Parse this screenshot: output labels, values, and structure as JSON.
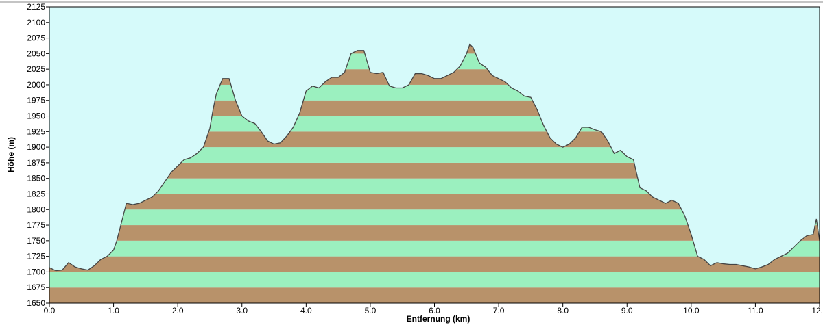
{
  "chart_data": {
    "type": "area",
    "xlabel": "Entfernung   (km)",
    "ylabel": "Höhe (m)",
    "x": [
      0.0,
      0.1,
      0.2,
      0.3,
      0.4,
      0.5,
      0.6,
      0.7,
      0.8,
      0.9,
      1.0,
      1.05,
      1.1,
      1.15,
      1.2,
      1.3,
      1.4,
      1.5,
      1.6,
      1.7,
      1.8,
      1.9,
      2.0,
      2.1,
      2.2,
      2.3,
      2.4,
      2.5,
      2.55,
      2.6,
      2.7,
      2.8,
      2.9,
      3.0,
      3.1,
      3.2,
      3.3,
      3.4,
      3.5,
      3.6,
      3.7,
      3.8,
      3.9,
      4.0,
      4.1,
      4.2,
      4.3,
      4.4,
      4.5,
      4.6,
      4.7,
      4.8,
      4.9,
      5.0,
      5.1,
      5.2,
      5.3,
      5.4,
      5.5,
      5.6,
      5.7,
      5.8,
      5.9,
      6.0,
      6.1,
      6.2,
      6.3,
      6.4,
      6.5,
      6.55,
      6.6,
      6.7,
      6.8,
      6.9,
      7.0,
      7.1,
      7.2,
      7.3,
      7.4,
      7.5,
      7.6,
      7.7,
      7.8,
      7.9,
      8.0,
      8.1,
      8.2,
      8.3,
      8.4,
      8.5,
      8.6,
      8.7,
      8.8,
      8.9,
      9.0,
      9.1,
      9.2,
      9.3,
      9.4,
      9.5,
      9.6,
      9.7,
      9.8,
      9.9,
      10.0,
      10.1,
      10.2,
      10.3,
      10.4,
      10.5,
      10.6,
      10.7,
      10.8,
      10.9,
      11.0,
      11.1,
      11.2,
      11.3,
      11.4,
      11.5,
      11.6,
      11.7,
      11.8,
      11.9,
      11.95,
      12.0
    ],
    "values": [
      1707,
      1702,
      1703,
      1715,
      1708,
      1705,
      1703,
      1710,
      1720,
      1725,
      1735,
      1750,
      1770,
      1790,
      1810,
      1808,
      1810,
      1815,
      1820,
      1830,
      1845,
      1860,
      1870,
      1880,
      1883,
      1890,
      1900,
      1930,
      1960,
      1985,
      2010,
      2010,
      1975,
      1950,
      1942,
      1938,
      1925,
      1910,
      1905,
      1907,
      1918,
      1932,
      1955,
      1990,
      1998,
      1995,
      2005,
      2012,
      2012,
      2020,
      2050,
      2055,
      2055,
      2020,
      2018,
      2020,
      1998,
      1995,
      1995,
      2000,
      2018,
      2018,
      2015,
      2010,
      2010,
      2015,
      2020,
      2030,
      2050,
      2065,
      2060,
      2035,
      2028,
      2015,
      2010,
      2005,
      1995,
      1990,
      1982,
      1980,
      1960,
      1935,
      1915,
      1905,
      1900,
      1905,
      1915,
      1932,
      1932,
      1928,
      1925,
      1910,
      1890,
      1895,
      1885,
      1880,
      1835,
      1830,
      1820,
      1815,
      1810,
      1815,
      1810,
      1790,
      1760,
      1725,
      1720,
      1710,
      1715,
      1713,
      1712,
      1712,
      1710,
      1708,
      1705,
      1708,
      1712,
      1720,
      1725,
      1730,
      1740,
      1750,
      1758,
      1760,
      1785,
      1750
    ],
    "xlim": [
      0,
      12
    ],
    "ylim": [
      1650,
      2125
    ],
    "xticks": [
      {
        "value": 0,
        "label": "0.0"
      },
      {
        "value": 1,
        "label": "1.0"
      },
      {
        "value": 2,
        "label": "2.0"
      },
      {
        "value": 3,
        "label": "3.0"
      },
      {
        "value": 4,
        "label": "4.0"
      },
      {
        "value": 5,
        "label": "5.0"
      },
      {
        "value": 6,
        "label": "6.0"
      },
      {
        "value": 7,
        "label": "7.0"
      },
      {
        "value": 8,
        "label": "8.0"
      },
      {
        "value": 9,
        "label": "9.0"
      },
      {
        "value": 10,
        "label": "10.0"
      },
      {
        "value": 11,
        "label": "11.0"
      },
      {
        "value": 12,
        "label": "12.0"
      }
    ],
    "yticks": [
      1650,
      1675,
      1700,
      1725,
      1750,
      1775,
      1800,
      1825,
      1850,
      1875,
      1900,
      1925,
      1950,
      1975,
      2000,
      2025,
      2050,
      2075,
      2100,
      2125
    ],
    "band_colors": [
      "#b8926a",
      "#9bf0bf"
    ],
    "background": "#d6fafa",
    "line_color": "#444444"
  }
}
